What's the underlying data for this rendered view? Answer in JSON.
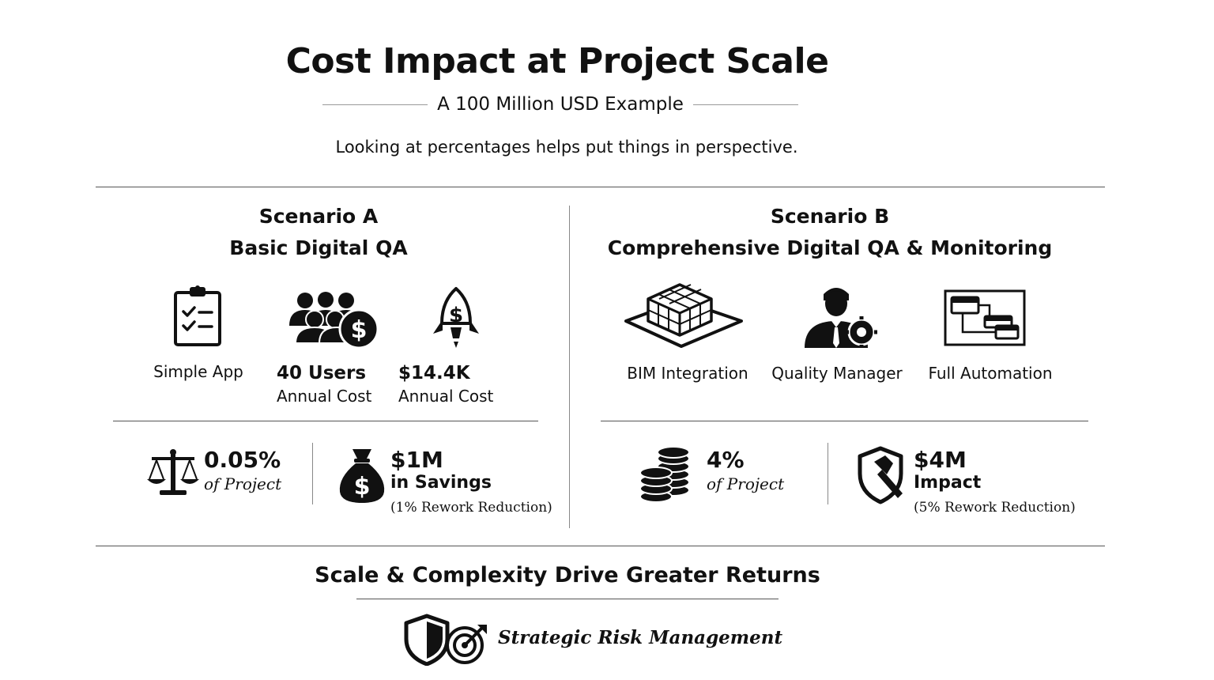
{
  "header": {
    "title": "Cost Impact at Project Scale",
    "subtitle": "A 100 Million USD Example",
    "intro": "Looking at percentages helps put things in perspective."
  },
  "scenario_a": {
    "label": "Scenario A",
    "name": "Basic Digital QA",
    "features": [
      {
        "icon": "clipboard-checklist-icon",
        "label": "Simple App"
      },
      {
        "icon": "users-dollar-icon",
        "value": "40 Users",
        "label": "Annual Cost"
      },
      {
        "icon": "rocket-dollar-icon",
        "value": "$14.4K",
        "label": "Annual Cost"
      }
    ],
    "stats": [
      {
        "icon": "balance-scale-icon",
        "value": "0.05%",
        "label": "of Project"
      },
      {
        "icon": "money-bag-icon",
        "value": "$1M",
        "label": "in Savings",
        "note": "(1% Rework Reduction)"
      }
    ]
  },
  "scenario_b": {
    "label": "Scenario B",
    "name": "Comprehensive Digital QA & Monitoring",
    "features": [
      {
        "icon": "bim-model-icon",
        "label": "BIM Integration"
      },
      {
        "icon": "quality-manager-icon",
        "label": "Quality Manager"
      },
      {
        "icon": "automation-flow-icon",
        "label": "Full Automation"
      }
    ],
    "stats": [
      {
        "icon": "coin-stacks-icon",
        "value": "4%",
        "label": "of Project"
      },
      {
        "icon": "shield-hammer-icon",
        "value": "$4M",
        "label": "Impact",
        "note": "(5% Rework Reduction)"
      }
    ]
  },
  "footer": {
    "headline": "Scale & Complexity Drive Greater Returns",
    "tagline": "Strategic Risk Management",
    "icons": [
      "shield-icon",
      "target-arrow-icon"
    ]
  }
}
